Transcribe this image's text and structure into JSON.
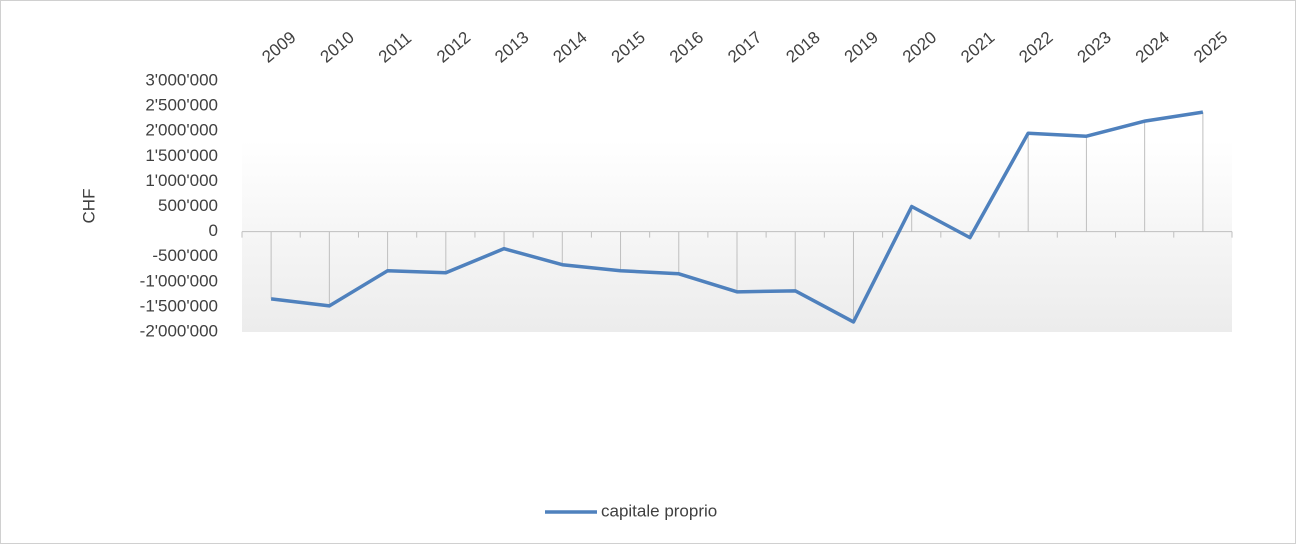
{
  "chart_data": {
    "type": "line",
    "y_axis_label": "CHF",
    "categories": [
      "2009",
      "2010",
      "2011",
      "2012",
      "2013",
      "2014",
      "2015",
      "2016",
      "2017",
      "2018",
      "2019",
      "2020",
      "2021",
      "2022",
      "2023",
      "2024",
      "2025"
    ],
    "series": [
      {
        "name": "capitale proprio",
        "color": "#4f81bd",
        "values": [
          -1340000,
          -1480000,
          -780000,
          -820000,
          -340000,
          -660000,
          -780000,
          -840000,
          -1200000,
          -1180000,
          -1800000,
          500000,
          -120000,
          1960000,
          1900000,
          2200000,
          2380000
        ]
      }
    ],
    "ylim": [
      -2000000,
      3000000
    ],
    "yticks": [
      {
        "value": -2000000,
        "label": "-2'000'000"
      },
      {
        "value": -1500000,
        "label": "-1'500'000"
      },
      {
        "value": -1000000,
        "label": "-1'000'000"
      },
      {
        "value": -500000,
        "label": "-500'000"
      },
      0,
      {
        "value": 500000,
        "label": "500'000"
      },
      {
        "value": 1000000,
        "label": "1'000'000"
      },
      {
        "value": 1500000,
        "label": "1'500'000"
      },
      {
        "value": 2000000,
        "label": "2'000'000"
      },
      {
        "value": 2500000,
        "label": "2'500'000"
      },
      {
        "value": 3000000,
        "label": "3'000'000"
      }
    ],
    "legend": "bottom"
  }
}
